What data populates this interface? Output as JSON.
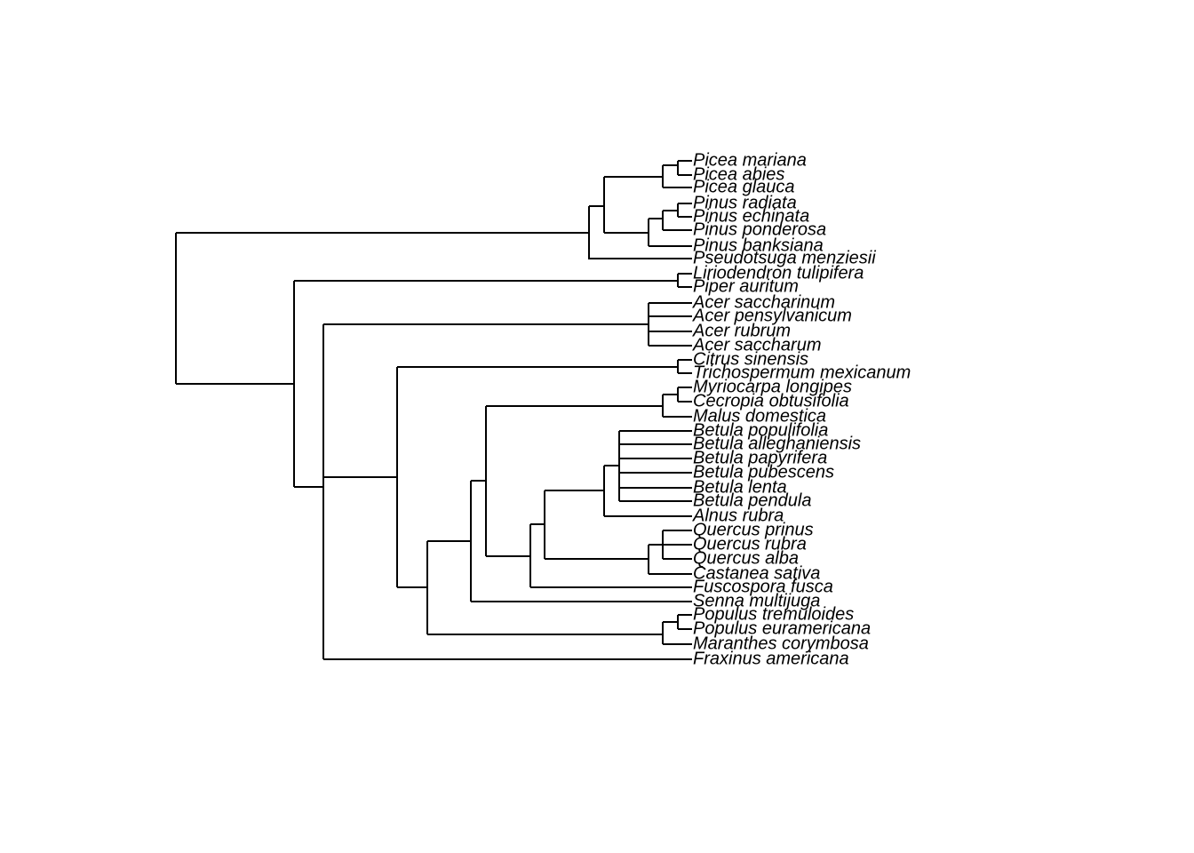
{
  "tree": {
    "leaves": [
      "Picea mariana",
      "Picea abies",
      "Picea glauca",
      "Pinus radiata",
      "Pinus echinata",
      "Pinus ponderosa",
      "Pinus banksiana",
      "Pseudotsuga menziesii",
      "Liriodendron tulipifera",
      "Piper auritum",
      "Acer saccharinum",
      "Acer pensylvanicum",
      "Acer rubrum",
      "Acer saccharum",
      "Citrus sinensis",
      "Trichospermum mexicanum",
      "Myriocarpa longipes",
      "Cecropia obtusifolia",
      "Malus domestica",
      "Betula populifolia",
      "Betula alleghaniensis",
      "Betula papyrifera",
      "Betula pubescens",
      "Betula lenta",
      "Betula pendula",
      "Alnus rubra",
      "Quercus prinus",
      "Quercus rubra",
      "Quercus alba",
      "Castanea sativa",
      "Fuscospora fusca",
      "Senna multijuga",
      "Populus tremuloides",
      "Populus euramericana",
      "Maranthes corymbosa",
      "Fraxinus americana"
    ]
  }
}
